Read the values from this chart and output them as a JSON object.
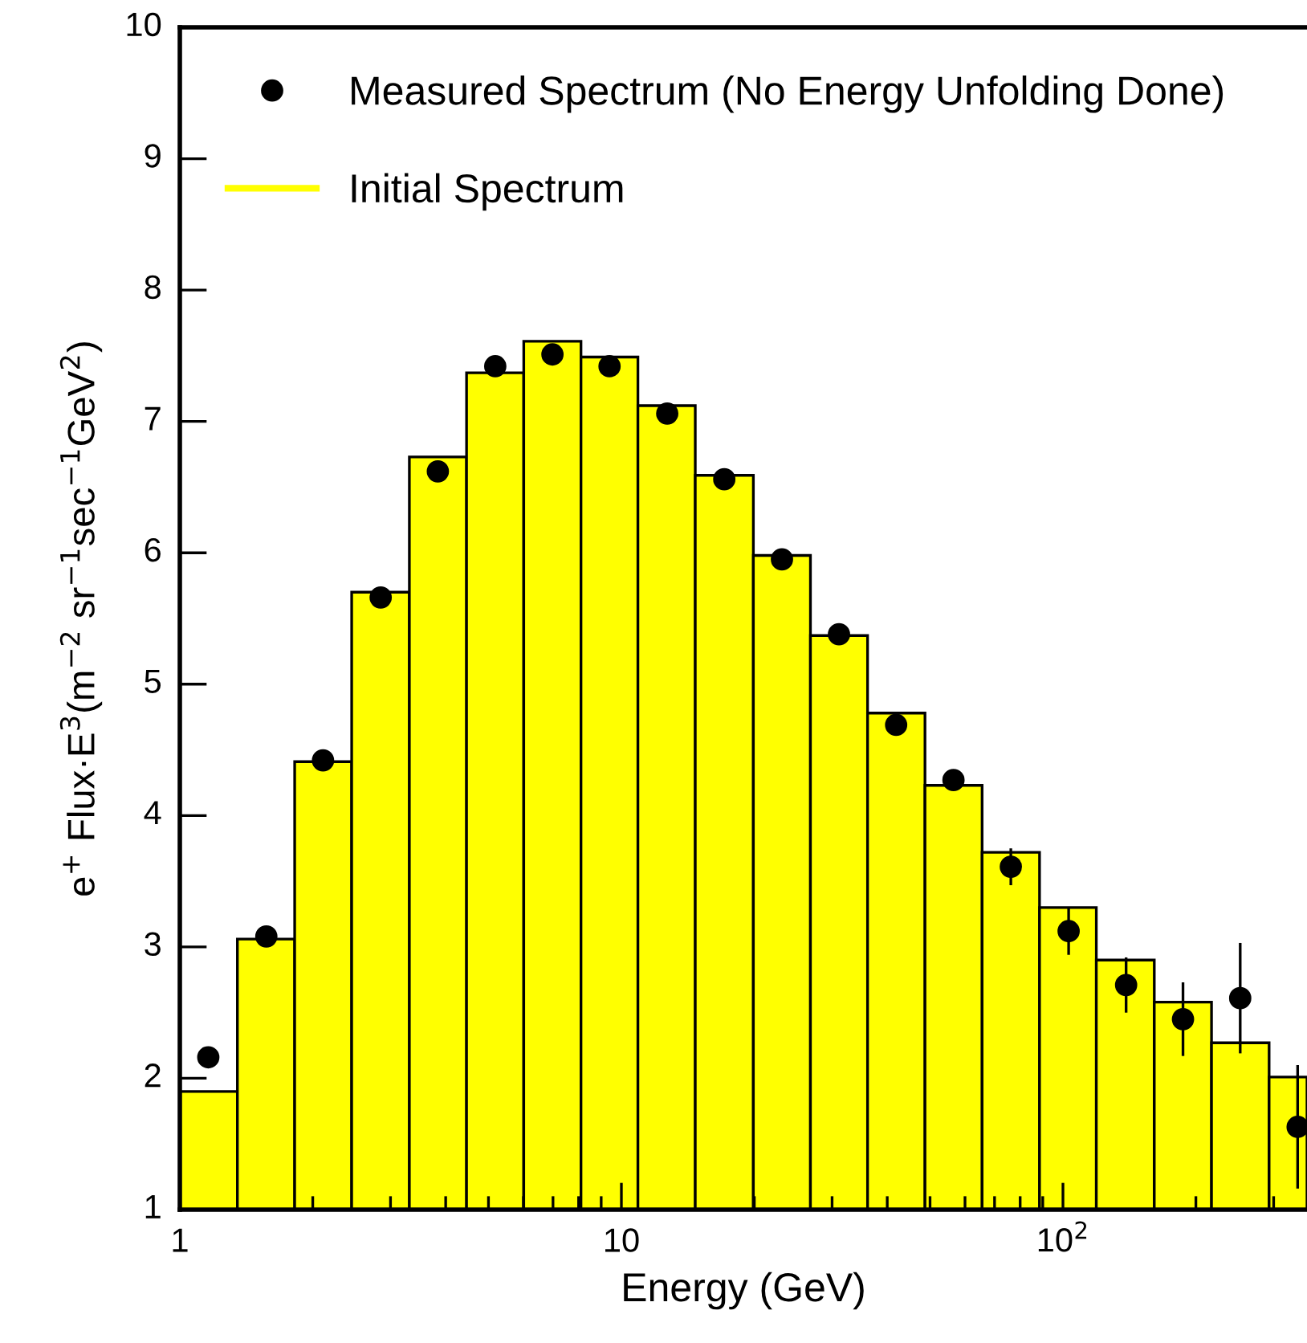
{
  "chart_data": {
    "type": "histogram",
    "xlabel": "Energy (GeV)",
    "ylabel": "e$^{+}$ Flux·E$^{3}$(m$^{−2}$ sr$^{−1}$sec$^{−1}$GeV$^{2}$)",
    "log": "x",
    "xlim": [
      1,
      357
    ],
    "ylim": [
      1,
      10
    ],
    "xticks": [
      1,
      10,
      {
        "value": 100,
        "label": "10$^{2}$"
      }
    ],
    "yticks": [
      1,
      2,
      3,
      4,
      5,
      6,
      7,
      8,
      9,
      10
    ],
    "grid": false,
    "legend": "top left",
    "series": [
      {
        "name": "Initial Spectrum",
        "color": "#ffff00",
        "bins": [
          1.0,
          1.35,
          1.82,
          2.45,
          3.31,
          4.46,
          6.01,
          8.1,
          10.9,
          14.7,
          19.9,
          26.8,
          36.1,
          48.7,
          65.6,
          88.5,
          119,
          161,
          217,
          293,
          357
        ],
        "values": [
          1.9,
          3.06,
          4.41,
          5.7,
          6.73,
          7.37,
          7.61,
          7.49,
          7.12,
          6.59,
          5.98,
          5.37,
          4.78,
          4.23,
          3.72,
          3.3,
          2.9,
          2.58,
          2.27,
          2.01
        ]
      },
      {
        "type": "scatter",
        "name": "Measured Spectrum (No Energy Unfolding Done)",
        "color": "#000000",
        "marker": "circle",
        "x": [
          1.16,
          1.57,
          2.11,
          2.85,
          3.84,
          5.18,
          6.98,
          9.4,
          12.7,
          17.1,
          23.1,
          31.1,
          41.9,
          56.5,
          76.2,
          103,
          139,
          187,
          252,
          340
        ],
        "values": [
          2.16,
          3.08,
          4.42,
          5.66,
          6.62,
          7.42,
          7.51,
          7.42,
          7.06,
          6.56,
          5.95,
          5.38,
          4.69,
          4.27,
          3.61,
          3.12,
          2.71,
          2.45,
          2.61,
          1.63
        ],
        "errors": [
          null,
          null,
          null,
          null,
          null,
          null,
          null,
          null,
          null,
          null,
          null,
          null,
          null,
          0.06,
          0.13,
          0.17,
          0.2,
          0.27,
          0.41,
          0.46
        ]
      }
    ]
  }
}
